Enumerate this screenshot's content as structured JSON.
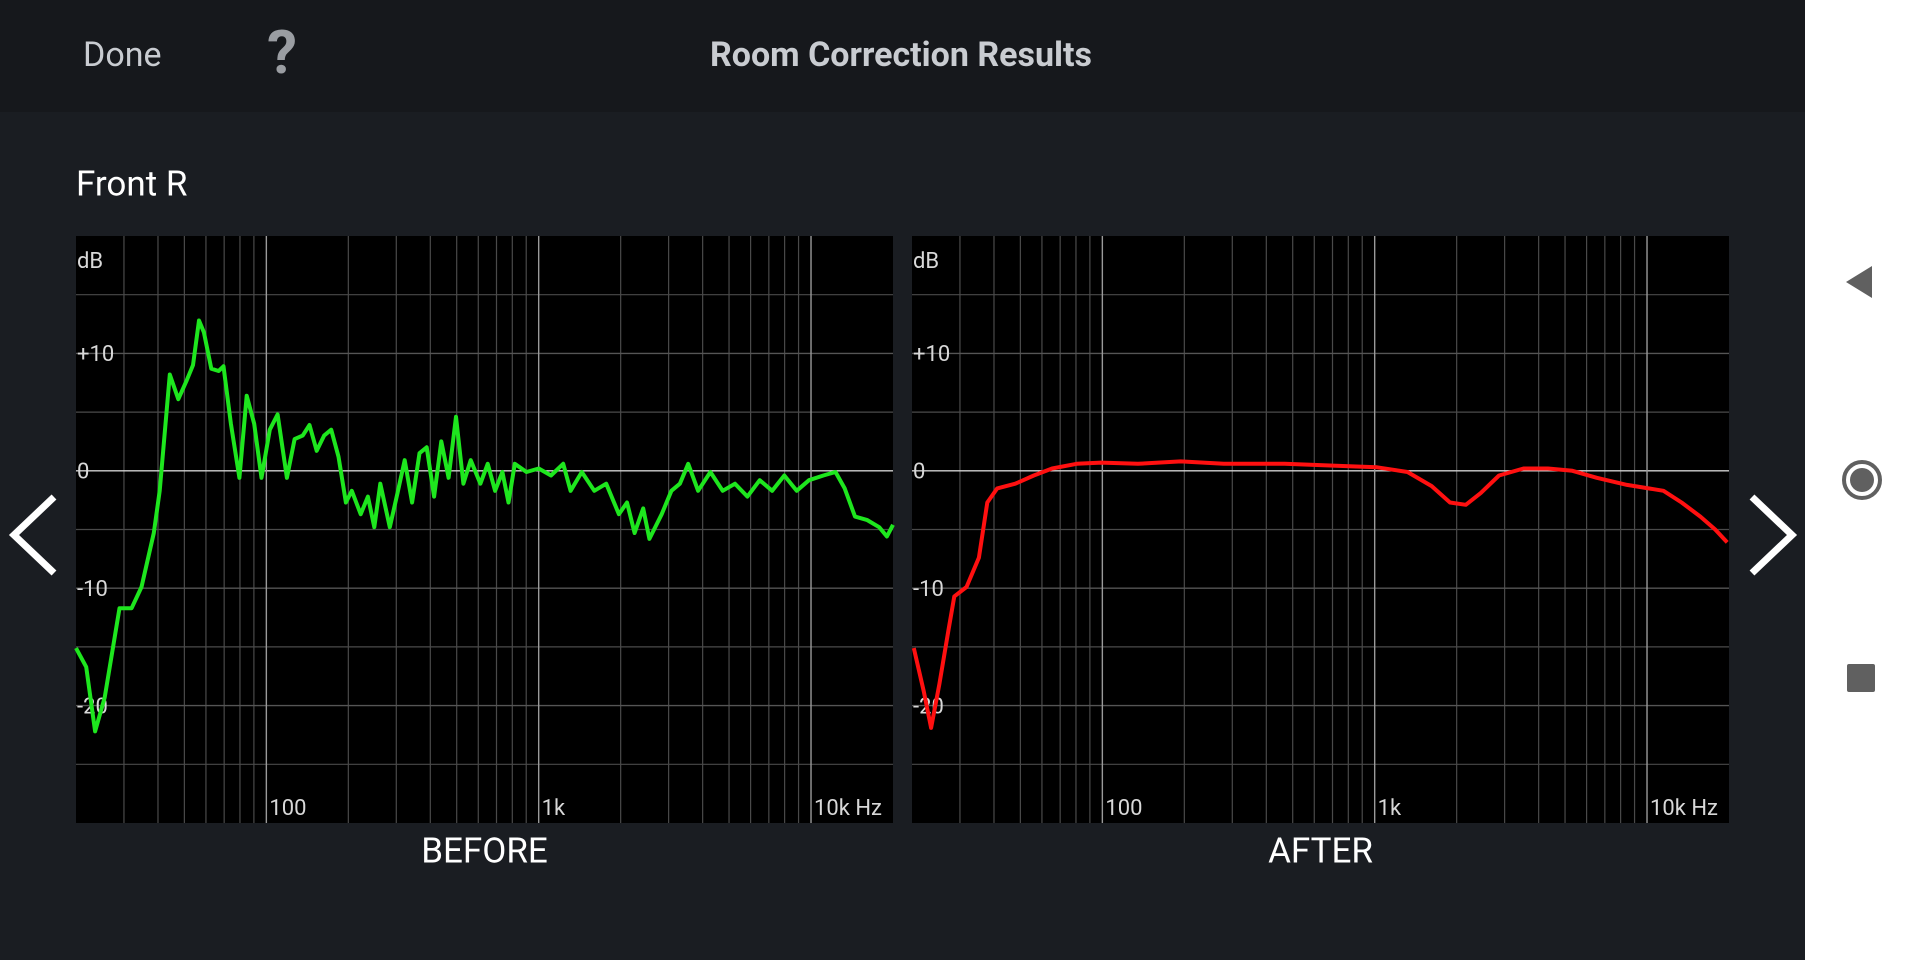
{
  "header": {
    "done": "Done",
    "help": "?",
    "title": "Room Correction Results"
  },
  "channel": "Front R",
  "chart_data": [
    {
      "type": "line",
      "title": "BEFORE",
      "ylabel": "dB",
      "color": "#1ee61e",
      "xscale": "log",
      "xlim": [
        20,
        20000
      ],
      "ylim": [
        -30,
        20
      ],
      "xticks": [
        100,
        {
          "value": 1000,
          "label": "1k"
        },
        {
          "value": 10000,
          "label": "10k Hz"
        }
      ],
      "xminor": [
        30,
        40,
        50,
        60,
        70,
        80,
        90,
        200,
        300,
        400,
        500,
        600,
        700,
        800,
        900,
        2000,
        3000,
        4000,
        5000,
        6000,
        7000,
        8000,
        9000
      ],
      "yticks": [
        {
          "value": 10,
          "label": "+10"
        },
        0,
        -10,
        -20
      ],
      "yminor": [
        15,
        5,
        -5,
        -15,
        -25
      ],
      "x": [
        20,
        21.8,
        23.5,
        25.5,
        28.9,
        32,
        34.8,
        38.6,
        40.6,
        44.2,
        47.5,
        51,
        53.8,
        56.6,
        59,
        62.8,
        66.8,
        69.6,
        74.1,
        79.6,
        84.7,
        90.2,
        96,
        103,
        110,
        119,
        127,
        136,
        144,
        153,
        163,
        173,
        184,
        196,
        206,
        222,
        236,
        249,
        262,
        284,
        303,
        322,
        343,
        365,
        388,
        413,
        439,
        467,
        497,
        529,
        563,
        611,
        650,
        692,
        736,
        775,
        817,
        902,
        1000,
        1110,
        1230,
        1310,
        1440,
        1600,
        1770,
        1970,
        2110,
        2250,
        2420,
        2550,
        2830,
        3070,
        3300,
        3540,
        3850,
        4270,
        4740,
        5260,
        5840,
        6480,
        7200,
        7980,
        8860,
        9830,
        11100,
        12300,
        13300,
        14500,
        16100,
        17800,
        19000,
        20000
      ],
      "values": [
        -15.1,
        -16.7,
        -22.2,
        -19.3,
        -11.7,
        -11.7,
        -9.9,
        -5.3,
        -1.7,
        8.2,
        6.1,
        7.7,
        9,
        12.8,
        11.8,
        8.7,
        8.5,
        8.9,
        4,
        -0.6,
        6.4,
        4,
        -0.6,
        3.5,
        4.8,
        -0.6,
        2.7,
        3,
        3.9,
        1.7,
        3,
        3.5,
        1.2,
        -2.7,
        -1.7,
        -3.7,
        -2.2,
        -4.8,
        -1.1,
        -4.8,
        -1.9,
        0.9,
        -2.7,
        1.5,
        2,
        -2.2,
        2.5,
        -0.6,
        4.6,
        -1.1,
        0.9,
        -1.1,
        0.6,
        -1.7,
        -0.1,
        -2.7,
        0.6,
        -0.1,
        0.2,
        -0.4,
        0.6,
        -1.7,
        -0.1,
        -1.7,
        -1.1,
        -3.7,
        -2.7,
        -5.3,
        -3.2,
        -5.8,
        -3.7,
        -1.7,
        -1.1,
        0.6,
        -1.7,
        -0.1,
        -1.7,
        -1.1,
        -2.2,
        -0.8,
        -1.7,
        -0.4,
        -1.7,
        -0.8,
        -0.4,
        -0.1,
        -1.5,
        -3.9,
        -4.2,
        -4.8,
        -5.6,
        -4.6
      ]
    },
    {
      "type": "line",
      "title": "AFTER",
      "ylabel": "dB",
      "color": "#ff1010",
      "xscale": "log",
      "xlim": [
        20,
        20000
      ],
      "ylim": [
        -30,
        20
      ],
      "xticks": [
        100,
        {
          "value": 1000,
          "label": "1k"
        },
        {
          "value": 10000,
          "label": "10k Hz"
        }
      ],
      "xminor": [
        30,
        40,
        50,
        60,
        70,
        80,
        90,
        200,
        300,
        400,
        500,
        600,
        700,
        800,
        900,
        2000,
        3000,
        4000,
        5000,
        6000,
        7000,
        8000,
        9000
      ],
      "yticks": [
        {
          "value": 10,
          "label": "+10"
        },
        0,
        -10,
        -20
      ],
      "yminor": [
        15,
        5,
        -5,
        -15,
        -25
      ],
      "x": [
        20.3,
        22.1,
        23.5,
        25.2,
        27.2,
        28.6,
        31.7,
        35.2,
        37.8,
        41.1,
        47.9,
        56,
        65.4,
        80.5,
        99,
        135,
        194,
        279,
        467,
        784,
        1020,
        1320,
        1620,
        1890,
        2160,
        2450,
        2860,
        3520,
        4330,
        5320,
        6540,
        8440,
        11500,
        13400,
        15700,
        17800,
        19700
      ],
      "values": [
        -15.1,
        -18.8,
        -21.9,
        -18.2,
        -13.6,
        -10.7,
        -9.9,
        -7.4,
        -2.7,
        -1.5,
        -1.1,
        -0.4,
        0.2,
        0.6,
        0.7,
        0.6,
        0.8,
        0.6,
        0.6,
        0.4,
        0.3,
        -0.1,
        -1.3,
        -2.7,
        -2.9,
        -1.9,
        -0.4,
        0.2,
        0.2,
        0,
        -0.6,
        -1.2,
        -1.7,
        -2.7,
        -3.9,
        -5,
        -6.1
      ]
    }
  ]
}
